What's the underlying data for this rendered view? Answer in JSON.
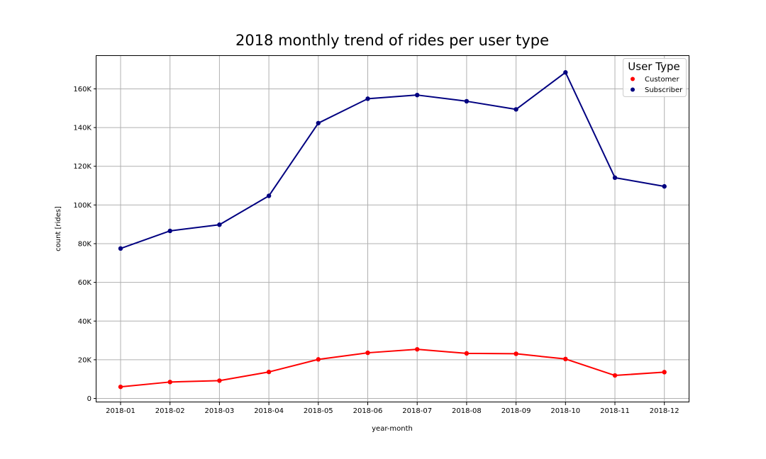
{
  "chart_data": {
    "type": "line",
    "title": "2018 monthly trend of rides per user type",
    "xlabel": "year-month",
    "ylabel": "count [rides]",
    "categories": [
      "2018-01",
      "2018-02",
      "2018-03",
      "2018-04",
      "2018-05",
      "2018-06",
      "2018-07",
      "2018-08",
      "2018-09",
      "2018-10",
      "2018-11",
      "2018-12"
    ],
    "ylim": [
      -2000,
      177000
    ],
    "yticks": [
      0,
      20000,
      40000,
      60000,
      80000,
      100000,
      120000,
      140000,
      160000
    ],
    "ytick_labels": [
      "0",
      "20K",
      "40K",
      "60K",
      "80K",
      "100K",
      "120K",
      "140K",
      "160K"
    ],
    "grid": true,
    "legend": {
      "title": "User Type",
      "placement": "top-right"
    },
    "series": [
      {
        "name": "Customer",
        "color": "#ff0000",
        "values": [
          6000,
          8500,
          9200,
          13700,
          20200,
          23600,
          25400,
          23300,
          23100,
          20400,
          11900,
          13600
        ]
      },
      {
        "name": "Subscriber",
        "color": "#000080",
        "values": [
          77500,
          86600,
          89800,
          104700,
          142300,
          154900,
          156800,
          153600,
          149400,
          168500,
          114100,
          109600
        ]
      }
    ]
  }
}
